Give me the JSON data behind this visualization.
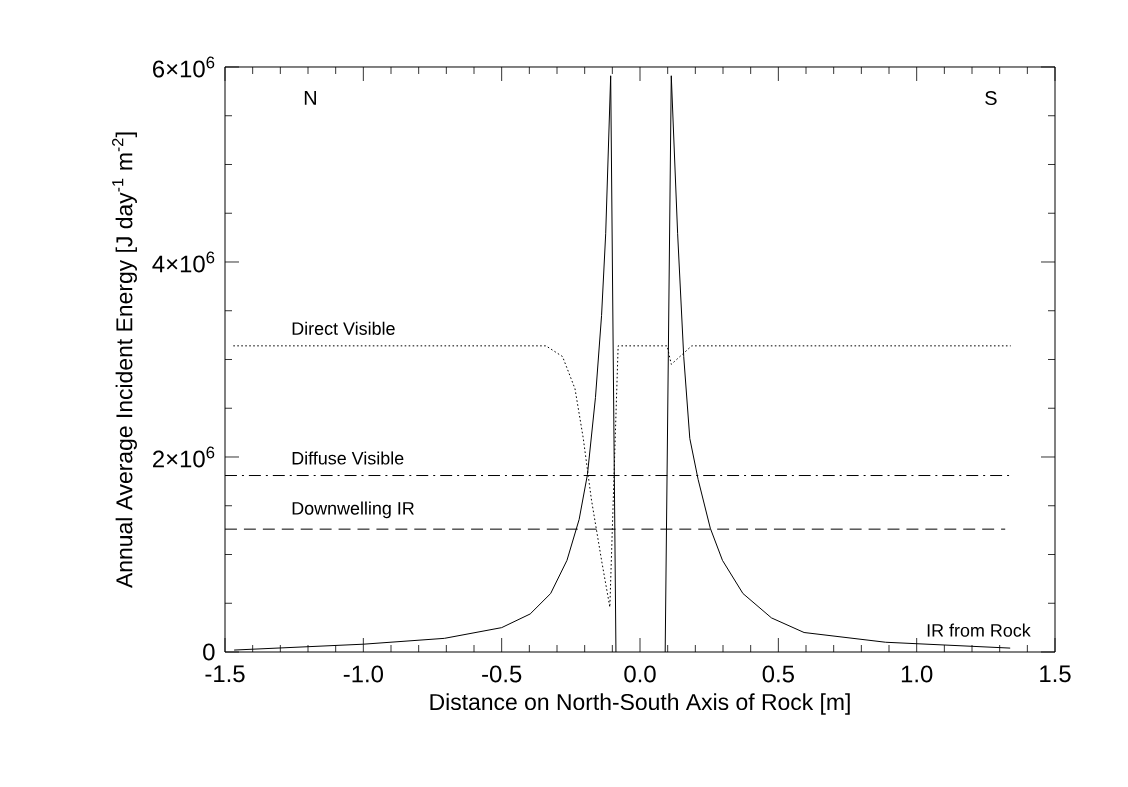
{
  "chart_data": {
    "type": "line",
    "xlabel": "Distance on North-South Axis of Rock [m]",
    "ylabel": "Annual Average Incident Energy [J day$^{-1}$ m$^{-2}$]",
    "xlim": [
      -1.5,
      1.5
    ],
    "ylim": [
      0,
      6000000
    ],
    "xticks": [
      {
        "value": -1.5,
        "label": "-1.5"
      },
      {
        "value": -1.0,
        "label": "-1.0"
      },
      {
        "value": -0.5,
        "label": "-0.5"
      },
      {
        "value": 0.0,
        "label": "0.0"
      },
      {
        "value": 0.5,
        "label": "0.5"
      },
      {
        "value": 1.0,
        "label": "1.0"
      },
      {
        "value": 1.5,
        "label": "1.5"
      }
    ],
    "yticks": [
      0,
      {
        "value": 2000000,
        "label": "2×10$^{6}$"
      },
      {
        "value": 4000000,
        "label": "4×10$^{6}$"
      },
      {
        "value": 6000000,
        "label": "6×10$^{6}$"
      }
    ],
    "grid": false,
    "legend": false,
    "marker": "none",
    "series": [
      {
        "name": "Direct Visible",
        "color": "#000000",
        "line_style": "dotted",
        "x": [
          -1.47,
          -0.34,
          -0.28,
          -0.235,
          -0.205,
          -0.176,
          -0.139,
          -0.109,
          -0.094,
          -0.079,
          0.098,
          0.113,
          0.187,
          1.34
        ],
        "values": [
          3140000,
          3140000,
          3030000,
          2700000,
          2190000,
          1570000,
          940000,
          460000,
          1800000,
          3140000,
          3140000,
          2950000,
          3140000,
          3140000
        ]
      },
      {
        "name": "Diffuse Visible",
        "color": "#000000",
        "line_style": "dashdot",
        "x": [
          -1.5,
          1.34
        ],
        "values": [
          1810000,
          1810000
        ]
      },
      {
        "name": "Downwelling IR",
        "color": "#000000",
        "line_style": "dashed",
        "x": [
          -1.5,
          1.32
        ],
        "values": [
          1260000,
          1260000
        ]
      },
      {
        "name": "IR from Rock",
        "color": "#000000",
        "line_style": "solid",
        "x": [
          -1.467,
          -1.0,
          -0.707,
          -0.5,
          -0.397,
          -0.323,
          -0.264,
          -0.22,
          -0.19,
          -0.161,
          -0.139,
          -0.124,
          -0.106,
          -0.087,
          0.0,
          0.091,
          0.113,
          0.136,
          0.158,
          0.18,
          0.21,
          0.254,
          0.298,
          0.372,
          0.475,
          0.593,
          0.888,
          1.338
        ],
        "values": [
          20000,
          80000,
          140000,
          250000,
          390000,
          600000,
          940000,
          1360000,
          1820000,
          2610000,
          3450000,
          4290000,
          5910000,
          0,
          null,
          0,
          5910000,
          4290000,
          3030000,
          2190000,
          1770000,
          1270000,
          940000,
          600000,
          350000,
          200000,
          100000,
          40000
        ]
      }
    ],
    "annotations": [
      "N",
      "S"
    ]
  }
}
